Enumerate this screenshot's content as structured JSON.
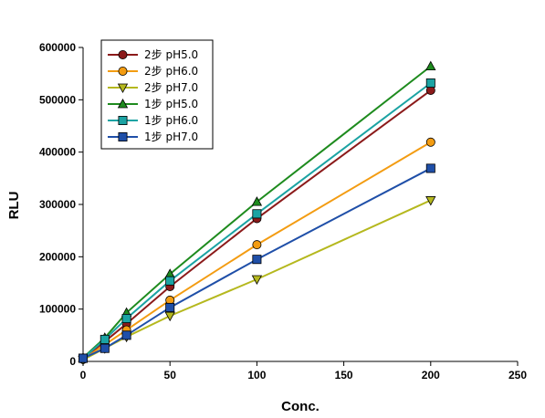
{
  "chart_data": {
    "type": "line",
    "title": "",
    "xlabel": "Conc.",
    "ylabel": "RLU",
    "xlim": [
      0,
      250
    ],
    "ylim": [
      0,
      600000
    ],
    "xticks": [
      0,
      50,
      100,
      150,
      200,
      250
    ],
    "yticks": [
      0,
      100000,
      200000,
      300000,
      400000,
      500000,
      600000
    ],
    "grid": false,
    "legend_position": "top-left",
    "x": [
      0,
      12.5,
      25,
      50,
      100,
      200
    ],
    "series": [
      {
        "name": "2步 pH5.0",
        "color": "#8B1A1A",
        "marker": "circle",
        "values": [
          5000,
          38000,
          72000,
          143000,
          273000,
          518000
        ]
      },
      {
        "name": "2步 pH6.0",
        "color": "#F39C12",
        "marker": "circle",
        "values": [
          4000,
          32000,
          60000,
          117000,
          223000,
          419000
        ]
      },
      {
        "name": "2步 pH7.0",
        "color": "#B5B81E",
        "marker": "triangle-down",
        "values": [
          3000,
          25000,
          47000,
          87000,
          157000,
          308000
        ]
      },
      {
        "name": "1步 pH5.0",
        "color": "#1E8B1E",
        "marker": "triangle-up",
        "values": [
          7000,
          45000,
          93000,
          167000,
          305000,
          564000
        ]
      },
      {
        "name": "1步 pH6.0",
        "color": "#1BA3A3",
        "marker": "square",
        "values": [
          6000,
          42000,
          82000,
          154000,
          282000,
          532000
        ]
      },
      {
        "name": "1步 pH7.0",
        "color": "#1F4FA8",
        "marker": "square",
        "values": [
          6000,
          25000,
          50000,
          103000,
          195000,
          369000
        ]
      }
    ]
  }
}
